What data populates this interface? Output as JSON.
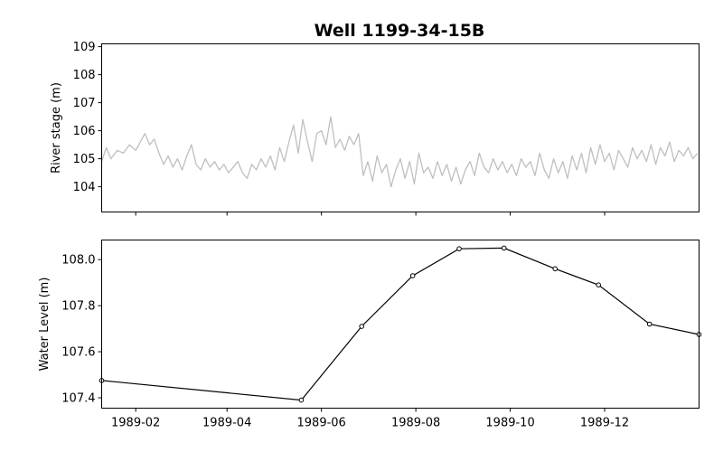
{
  "chart_data": [
    {
      "type": "line",
      "title": "Well 1199-34-15B",
      "ylabel": "River stage (m)",
      "xlabel": "",
      "ylim": [
        103.1,
        109.1
      ],
      "yticks": [
        "104",
        "105",
        "106",
        "107",
        "108",
        "109"
      ],
      "series": [
        {
          "color": "#bfbfbf",
          "x": [
            "1989-01-10",
            "1989-01-13",
            "1989-01-16",
            "1989-01-20",
            "1989-01-24",
            "1989-01-28",
            "1989-02-01",
            "1989-02-04",
            "1989-02-07",
            "1989-02-10",
            "1989-02-13",
            "1989-02-16",
            "1989-02-19",
            "1989-02-22",
            "1989-02-25",
            "1989-02-28",
            "1989-03-03",
            "1989-03-06",
            "1989-03-09",
            "1989-03-12",
            "1989-03-15",
            "1989-03-18",
            "1989-03-21",
            "1989-03-24",
            "1989-03-27",
            "1989-03-30",
            "1989-04-02",
            "1989-04-05",
            "1989-04-08",
            "1989-04-11",
            "1989-04-14",
            "1989-04-17",
            "1989-04-20",
            "1989-04-23",
            "1989-04-26",
            "1989-04-29",
            "1989-05-02",
            "1989-05-05",
            "1989-05-08",
            "1989-05-11",
            "1989-05-14",
            "1989-05-17",
            "1989-05-20",
            "1989-05-23",
            "1989-05-26",
            "1989-05-29",
            "1989-06-01",
            "1989-06-04",
            "1989-06-07",
            "1989-06-10",
            "1989-06-13",
            "1989-06-16",
            "1989-06-19",
            "1989-06-22",
            "1989-06-25",
            "1989-06-28",
            "1989-07-01",
            "1989-07-04",
            "1989-07-07",
            "1989-07-10",
            "1989-07-13",
            "1989-07-16",
            "1989-07-19",
            "1989-07-22",
            "1989-07-25",
            "1989-07-28",
            "1989-07-31",
            "1989-08-03",
            "1989-08-06",
            "1989-08-09",
            "1989-08-12",
            "1989-08-15",
            "1989-08-18",
            "1989-08-21",
            "1989-08-24",
            "1989-08-27",
            "1989-08-30",
            "1989-09-02",
            "1989-09-05",
            "1989-09-08",
            "1989-09-11",
            "1989-09-14",
            "1989-09-17",
            "1989-09-20",
            "1989-09-23",
            "1989-09-26",
            "1989-09-29",
            "1989-10-02",
            "1989-10-05",
            "1989-10-08",
            "1989-10-11",
            "1989-10-14",
            "1989-10-17",
            "1989-10-20",
            "1989-10-23",
            "1989-10-26",
            "1989-10-29",
            "1989-11-01",
            "1989-11-04",
            "1989-11-07",
            "1989-11-10",
            "1989-11-13",
            "1989-11-16",
            "1989-11-19",
            "1989-11-22",
            "1989-11-25",
            "1989-11-28",
            "1989-12-01",
            "1989-12-04",
            "1989-12-07",
            "1989-12-10",
            "1989-12-13",
            "1989-12-16",
            "1989-12-19",
            "1989-12-22",
            "1989-12-25",
            "1989-12-28",
            "1989-12-31",
            "1990-01-03",
            "1990-01-06",
            "1990-01-09",
            "1990-01-12",
            "1990-01-15",
            "1990-01-18",
            "1990-01-21",
            "1990-01-24",
            "1990-01-27",
            "1990-01-30"
          ],
          "values": [
            104.9,
            105.4,
            105.0,
            105.3,
            105.2,
            105.5,
            105.3,
            105.6,
            105.9,
            105.5,
            105.7,
            105.2,
            104.8,
            105.1,
            104.7,
            105.0,
            104.6,
            105.1,
            105.5,
            104.8,
            104.6,
            105.0,
            104.7,
            104.9,
            104.6,
            104.8,
            104.5,
            104.7,
            104.9,
            104.5,
            104.3,
            104.8,
            104.6,
            105.0,
            104.7,
            105.1,
            104.6,
            105.4,
            104.9,
            105.6,
            106.2,
            105.2,
            106.4,
            105.6,
            104.9,
            105.9,
            106.0,
            105.5,
            106.5,
            105.4,
            105.7,
            105.3,
            105.8,
            105.5,
            105.9,
            104.4,
            104.9,
            104.2,
            105.1,
            104.5,
            104.8,
            104.0,
            104.6,
            105.0,
            104.3,
            104.9,
            104.1,
            105.2,
            104.5,
            104.7,
            104.3,
            104.9,
            104.4,
            104.8,
            104.2,
            104.7,
            104.1,
            104.6,
            104.9,
            104.4,
            105.2,
            104.7,
            104.5,
            105.0,
            104.6,
            104.9,
            104.5,
            104.8,
            104.4,
            105.0,
            104.7,
            104.9,
            104.4,
            105.2,
            104.6,
            104.3,
            105.0,
            104.5,
            104.9,
            104.3,
            105.1,
            104.6,
            105.2,
            104.5,
            105.4,
            104.8,
            105.5,
            104.9,
            105.2,
            104.6,
            105.3,
            105.0,
            104.7,
            105.4,
            105.0,
            105.3,
            104.9,
            105.5,
            104.8,
            105.4,
            105.1,
            105.6,
            104.9,
            105.3,
            105.1,
            105.4,
            105.0,
            105.2
          ]
        }
      ]
    },
    {
      "type": "line",
      "title": "",
      "ylabel": "Water Level (m)",
      "xlabel": "",
      "ylim": [
        107.355,
        108.085
      ],
      "yticks": [
        "107.4",
        "107.6",
        "107.8",
        "108.0"
      ],
      "xticks": [
        "1989-02",
        "1989-04",
        "1989-06",
        "1989-08",
        "1989-10",
        "1989-12"
      ],
      "xlim": [
        "1989-01-10",
        "1990-01-31"
      ],
      "series": [
        {
          "color": "#000000",
          "marker": "open-circle",
          "x": [
            "1989-01-10",
            "1989-05-19",
            "1989-06-27",
            "1989-07-30",
            "1989-08-29",
            "1989-09-27",
            "1989-10-30",
            "1989-11-27",
            "1989-12-30",
            "1990-01-31"
          ],
          "values": [
            107.475,
            107.39,
            107.71,
            107.93,
            108.047,
            108.05,
            107.96,
            107.89,
            107.72,
            107.675
          ]
        }
      ]
    }
  ]
}
